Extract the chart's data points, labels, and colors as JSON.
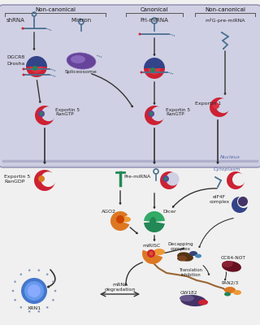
{
  "bg_color": "#f0f0f0",
  "nucleus_bg": "#d0d0e4",
  "nucleus_border": "#9898b8",
  "nucleus_label": "Nucleus",
  "cytoplasm_label": "Cytoplasm",
  "rna_color": "#4a7090",
  "red1": "#cc2233",
  "red2": "#dd3344",
  "blue1": "#334488",
  "blue2": "#223366",
  "purple1": "#664499",
  "purple2": "#8866bb",
  "orange1": "#dd7722",
  "orange2": "#ee9933",
  "green1": "#228855",
  "green2": "#33aa66",
  "brown1": "#553311",
  "brown2": "#774422",
  "navy1": "#334477",
  "navy2": "#446688",
  "teal1": "#226677",
  "blue_ball": "#4477cc",
  "dark_maroon": "#661122",
  "text_col": "#222222",
  "nucleus_text_col": "#5566aa",
  "arrow_col": "#333333",
  "labels": {
    "non_canon_left": "Non-canonical",
    "canonical": "Canonical",
    "non_canon_right": "Non-canonical",
    "shRNA": "shRNA",
    "mirtron": "Mirtron",
    "pri_miRNA": "Pri-miRNA",
    "m7G": "m¹G-pre-miRNA",
    "DGCR8": "DGCR8",
    "Drosha": "Drosha",
    "Spliceosome": "Spliceosome",
    "Exp5_RanGTP": "Exportin 5\nRanGTP",
    "Exportin1": "Exportin 1",
    "Exp5_RanGDP": "Exportin 5\nRanGDP",
    "Pre_miRNA": "Pre-miRNA",
    "AGO2": "AGO2",
    "Dicer": "Dicer",
    "miRISC": "miRISC",
    "mRNA_deg": "mRNA\ndegradation",
    "XRN1": "XRN1",
    "Decapping": "Decapping\ncomplex",
    "Translation": "Translation\ninhibition",
    "CCR4NOT": "CCR4-NOT",
    "PAN23": "PAN2/3",
    "GW182": "GW182",
    "eIF4F": "eIF4F\ncomplex"
  }
}
